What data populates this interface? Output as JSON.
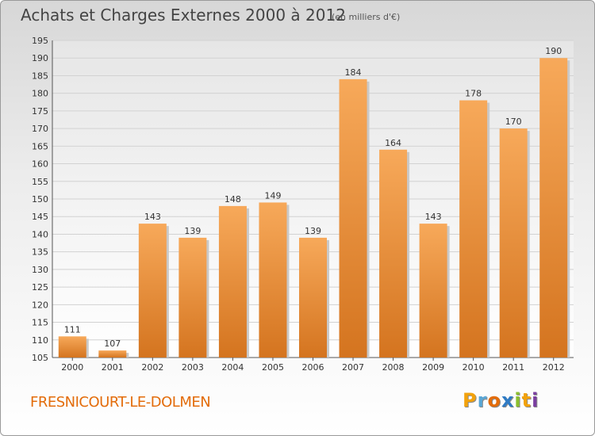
{
  "title": "Achats et Charges Externes 2000 à 2012",
  "units": "(en milliers d'€)",
  "location": "FRESNICOURT-LE-DOLMEN",
  "brand": "Proxiti",
  "colors": {
    "bar_light": "#f7a95a",
    "bar_dark": "#d4741f",
    "location_text": "#e36c0a",
    "brand_letters": [
      "#f2a20c",
      "#5aa7d6",
      "#e36c0a",
      "#2f7bc4",
      "#8bbf2e",
      "#f2a20c",
      "#7a3fa0"
    ]
  },
  "chart_data": {
    "type": "bar",
    "categories": [
      "2000",
      "2001",
      "2002",
      "2003",
      "2004",
      "2005",
      "2006",
      "2007",
      "2008",
      "2009",
      "2010",
      "2011",
      "2012"
    ],
    "values": [
      111,
      107,
      143,
      139,
      148,
      149,
      139,
      184,
      164,
      143,
      178,
      170,
      190
    ],
    "ylim": [
      105,
      195
    ],
    "yticks": [
      105,
      110,
      115,
      120,
      125,
      130,
      135,
      140,
      145,
      150,
      155,
      160,
      165,
      170,
      175,
      180,
      185,
      190,
      195
    ],
    "grid": true,
    "legend": "none"
  }
}
